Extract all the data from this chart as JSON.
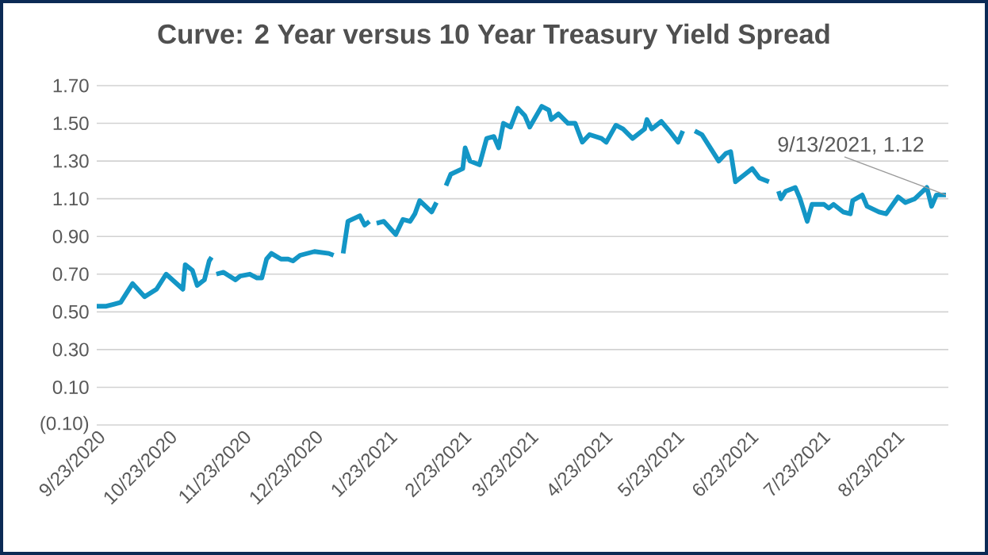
{
  "chart_data": {
    "type": "line",
    "title": "Curve: 2 Year versus 10 Year Treasury  Yield Spread",
    "x": [
      "2020-09-23",
      "2020-09-27",
      "2020-09-30",
      "2020-10-03",
      "2020-10-08",
      "2020-10-13",
      "2020-10-18",
      "2020-10-22",
      "2020-10-29",
      "2020-10-30",
      "2020-11-02",
      "2020-11-04",
      "2020-11-07",
      "2020-11-09",
      "2020-11-10",
      "2020-11-11",
      "2020-11-12",
      "2020-11-15",
      "2020-11-20",
      "2020-11-22",
      "2020-11-26",
      "2020-11-29",
      "2020-12-01",
      "2020-12-03",
      "2020-12-05",
      "2020-12-09",
      "2020-12-12",
      "2020-12-14",
      "2020-12-17",
      "2020-12-23",
      "2020-12-29",
      "2020-12-31",
      "2021-01-02",
      "2021-01-04",
      "2021-01-06",
      "2021-01-11",
      "2021-01-13",
      "2021-01-15",
      "2021-01-16",
      "2021-01-18",
      "2021-01-21",
      "2021-01-26",
      "2021-01-29",
      "2021-02-01",
      "2021-02-03",
      "2021-02-05",
      "2021-02-10",
      "2021-02-12",
      "2021-02-14",
      "2021-02-16",
      "2021-02-18",
      "2021-02-23",
      "2021-02-24",
      "2021-02-26",
      "2021-03-02",
      "2021-03-05",
      "2021-03-08",
      "2021-03-10",
      "2021-03-12",
      "2021-03-15",
      "2021-03-18",
      "2021-03-21",
      "2021-03-23",
      "2021-03-28",
      "2021-03-31",
      "2021-04-01",
      "2021-04-04",
      "2021-04-08",
      "2021-04-11",
      "2021-04-14",
      "2021-04-17",
      "2021-04-22",
      "2021-04-24",
      "2021-04-28",
      "2021-05-01",
      "2021-05-05",
      "2021-05-10",
      "2021-05-11",
      "2021-05-13",
      "2021-05-17",
      "2021-05-21",
      "2021-05-24",
      "2021-05-26",
      "2021-05-29",
      "2021-05-31",
      "2021-06-03",
      "2021-06-06",
      "2021-06-10",
      "2021-06-13",
      "2021-06-15",
      "2021-06-17",
      "2021-06-21",
      "2021-06-24",
      "2021-06-27",
      "2021-07-01",
      "2021-07-03",
      "2021-07-05",
      "2021-07-06",
      "2021-07-08",
      "2021-07-12",
      "2021-07-14",
      "2021-07-17",
      "2021-07-19",
      "2021-07-24",
      "2021-07-26",
      "2021-07-28",
      "2021-08-01",
      "2021-08-04",
      "2021-08-05",
      "2021-08-09",
      "2021-08-11",
      "2021-08-16",
      "2021-08-19",
      "2021-08-24",
      "2021-08-27",
      "2021-08-31",
      "2021-09-05",
      "2021-09-07",
      "2021-09-09",
      "2021-09-13"
    ],
    "values": [
      0.53,
      0.53,
      0.54,
      0.55,
      0.65,
      0.58,
      0.62,
      0.7,
      0.62,
      0.75,
      0.72,
      0.64,
      0.67,
      0.77,
      0.79,
      null,
      0.7,
      0.71,
      0.67,
      0.69,
      0.7,
      0.68,
      0.68,
      0.78,
      0.81,
      0.78,
      0.78,
      0.77,
      0.8,
      0.82,
      0.81,
      0.8,
      null,
      0.81,
      0.98,
      1.01,
      0.96,
      0.98,
      null,
      0.97,
      0.98,
      0.91,
      0.99,
      0.98,
      1.02,
      1.09,
      1.03,
      1.08,
      null,
      1.17,
      1.23,
      1.26,
      1.37,
      1.3,
      1.28,
      1.42,
      1.43,
      1.37,
      1.5,
      1.48,
      1.58,
      1.54,
      1.48,
      1.59,
      1.57,
      1.52,
      1.55,
      1.5,
      1.5,
      1.4,
      1.44,
      1.42,
      1.4,
      1.49,
      1.47,
      1.42,
      1.47,
      1.52,
      1.47,
      1.51,
      1.45,
      1.4,
      1.46,
      null,
      1.46,
      1.44,
      1.38,
      1.3,
      1.34,
      1.35,
      1.19,
      1.23,
      1.26,
      1.21,
      1.19,
      null,
      1.14,
      1.1,
      1.14,
      1.16,
      1.1,
      0.98,
      1.07,
      1.07,
      1.05,
      1.07,
      1.03,
      1.02,
      1.09,
      1.12,
      1.06,
      1.03,
      1.02,
      1.11,
      1.08,
      1.1,
      1.16,
      1.06,
      1.12,
      1.12
    ],
    "color": "#1396c6",
    "xlim": [
      "2020-09-23",
      "2021-09-14"
    ],
    "xticks": [
      {
        "value": "2020-09-23",
        "label": "9/23/2020"
      },
      {
        "value": "2020-10-23",
        "label": "10/23/2020"
      },
      {
        "value": "2020-11-23",
        "label": "11/23/2020"
      },
      {
        "value": "2020-12-23",
        "label": "12/23/2020"
      },
      {
        "value": "2021-01-23",
        "label": "1/23/2021"
      },
      {
        "value": "2021-02-23",
        "label": "2/23/2021"
      },
      {
        "value": "2021-03-23",
        "label": "3/23/2021"
      },
      {
        "value": "2021-04-23",
        "label": "4/23/2021"
      },
      {
        "value": "2021-05-23",
        "label": "5/23/2021"
      },
      {
        "value": "2021-06-23",
        "label": "6/23/2021"
      },
      {
        "value": "2021-07-23",
        "label": "7/23/2021"
      },
      {
        "value": "2021-08-23",
        "label": "8/23/2021"
      }
    ],
    "ylim": [
      -0.1,
      1.7
    ],
    "yticks": [
      {
        "value": -0.1,
        "label": "(0.10)"
      },
      {
        "value": 0.1,
        "label": "0.10"
      },
      {
        "value": 0.3,
        "label": "0.30"
      },
      {
        "value": 0.5,
        "label": "0.50"
      },
      {
        "value": 0.7,
        "label": "0.70"
      },
      {
        "value": 0.9,
        "label": "0.90"
      },
      {
        "value": 1.1,
        "label": "1.10"
      },
      {
        "value": 1.3,
        "label": "1.30"
      },
      {
        "value": 1.5,
        "label": "1.50"
      },
      {
        "value": 1.7,
        "label": "1.70"
      }
    ],
    "grid": "y",
    "annotations": [
      {
        "text": "9/13/2021,  1.12",
        "x": "2021-09-13",
        "y": 1.12
      }
    ]
  }
}
